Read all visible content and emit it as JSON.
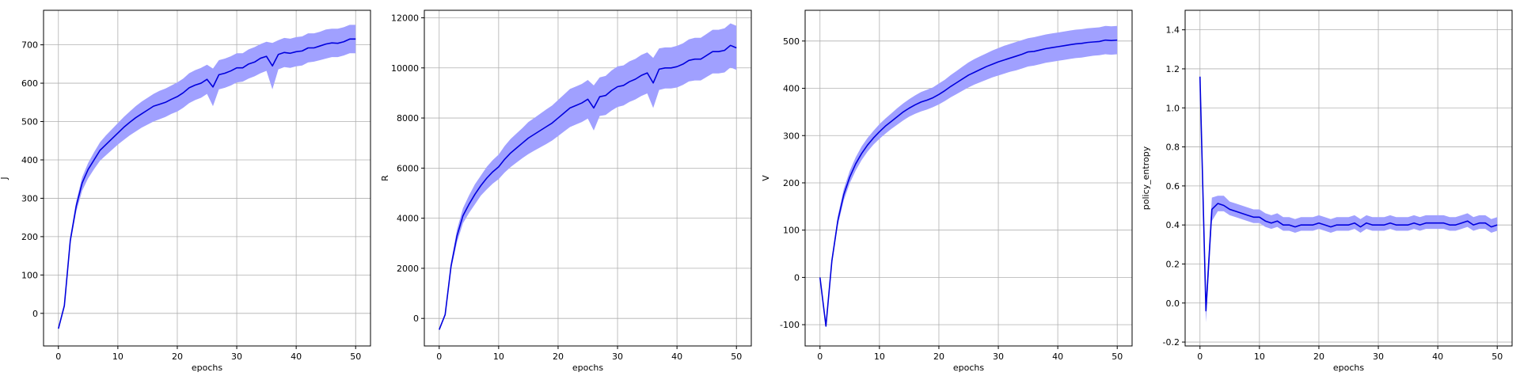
{
  "chart_data": [
    {
      "type": "line",
      "xlabel": "epochs",
      "ylabel": "J",
      "xlim": [
        -2.5,
        52.5
      ],
      "ylim": [
        -85,
        790
      ],
      "xticks": [
        0,
        10,
        20,
        30,
        40,
        50
      ],
      "yticks": [
        0,
        100,
        200,
        300,
        400,
        500,
        600,
        700
      ],
      "grid": true,
      "line_color": "#0000dd",
      "band_color": "#a0a0ff",
      "x": [
        0,
        1,
        2,
        3,
        4,
        5,
        6,
        7,
        8,
        9,
        10,
        11,
        12,
        13,
        14,
        15,
        16,
        17,
        18,
        19,
        20,
        21,
        22,
        23,
        24,
        25,
        26,
        27,
        28,
        29,
        30,
        31,
        32,
        33,
        34,
        35,
        36,
        37,
        38,
        39,
        40,
        41,
        42,
        43,
        44,
        45,
        46,
        47,
        48,
        49,
        50
      ],
      "mean": [
        -40,
        20,
        190,
        280,
        340,
        375,
        400,
        425,
        440,
        455,
        470,
        485,
        498,
        510,
        520,
        530,
        540,
        545,
        550,
        558,
        565,
        575,
        588,
        595,
        600,
        610,
        590,
        622,
        626,
        632,
        640,
        640,
        650,
        655,
        665,
        670,
        645,
        675,
        680,
        678,
        682,
        684,
        692,
        692,
        697,
        702,
        705,
        704,
        708,
        715,
        715
      ],
      "lower": [
        -40,
        15,
        180,
        265,
        320,
        352,
        376,
        398,
        412,
        426,
        440,
        452,
        464,
        474,
        484,
        492,
        500,
        506,
        512,
        520,
        526,
        536,
        548,
        556,
        562,
        572,
        540,
        584,
        588,
        594,
        602,
        604,
        612,
        618,
        626,
        632,
        584,
        636,
        642,
        640,
        644,
        646,
        654,
        656,
        660,
        664,
        668,
        668,
        672,
        678,
        678
      ],
      "upper": [
        -40,
        25,
        200,
        292,
        355,
        392,
        420,
        446,
        464,
        480,
        496,
        512,
        526,
        540,
        552,
        562,
        572,
        580,
        586,
        594,
        602,
        612,
        626,
        634,
        640,
        648,
        638,
        660,
        664,
        670,
        678,
        678,
        688,
        694,
        702,
        708,
        705,
        712,
        718,
        716,
        720,
        722,
        730,
        730,
        734,
        740,
        742,
        742,
        746,
        752,
        752
      ]
    },
    {
      "type": "line",
      "xlabel": "epochs",
      "ylabel": "R",
      "xlim": [
        -2.5,
        52.5
      ],
      "ylim": [
        -1100,
        12300
      ],
      "xticks": [
        0,
        10,
        20,
        30,
        40,
        50
      ],
      "yticks": [
        0,
        2000,
        4000,
        6000,
        8000,
        10000,
        12000
      ],
      "grid": true,
      "line_color": "#0000dd",
      "band_color": "#a0a0ff",
      "x": [
        0,
        1,
        2,
        3,
        4,
        5,
        6,
        7,
        8,
        9,
        10,
        11,
        12,
        13,
        14,
        15,
        16,
        17,
        18,
        19,
        20,
        21,
        22,
        23,
        24,
        25,
        26,
        27,
        28,
        29,
        30,
        31,
        32,
        33,
        34,
        35,
        36,
        37,
        38,
        39,
        40,
        41,
        42,
        43,
        44,
        45,
        46,
        47,
        48,
        49,
        50
      ],
      "mean": [
        -450,
        150,
        2100,
        3300,
        4100,
        4550,
        4950,
        5300,
        5600,
        5850,
        6050,
        6350,
        6600,
        6800,
        7000,
        7200,
        7350,
        7500,
        7650,
        7800,
        8000,
        8200,
        8400,
        8500,
        8600,
        8750,
        8400,
        8850,
        8900,
        9100,
        9250,
        9300,
        9450,
        9550,
        9700,
        9800,
        9400,
        9950,
        10000,
        10000,
        10050,
        10150,
        10300,
        10350,
        10350,
        10500,
        10650,
        10650,
        10700,
        10900,
        10800
      ],
      "lower": [
        -450,
        120,
        1950,
        3050,
        3800,
        4200,
        4550,
        4900,
        5150,
        5380,
        5560,
        5820,
        6040,
        6220,
        6400,
        6560,
        6700,
        6830,
        6960,
        7100,
        7280,
        7460,
        7640,
        7740,
        7840,
        7980,
        7500,
        8080,
        8120,
        8300,
        8440,
        8500,
        8640,
        8740,
        8880,
        8980,
        8400,
        9120,
        9180,
        9180,
        9220,
        9320,
        9460,
        9500,
        9500,
        9640,
        9780,
        9780,
        9820,
        10020,
        9920
      ],
      "upper": [
        -450,
        180,
        2250,
        3550,
        4400,
        4900,
        5350,
        5700,
        6050,
        6320,
        6540,
        6880,
        7160,
        7380,
        7600,
        7840,
        8000,
        8170,
        8340,
        8500,
        8720,
        8940,
        9160,
        9260,
        9360,
        9520,
        9300,
        9620,
        9680,
        9900,
        10060,
        10100,
        10260,
        10360,
        10520,
        10620,
        10400,
        10780,
        10820,
        10820,
        10880,
        10980,
        11140,
        11200,
        11200,
        11360,
        11520,
        11520,
        11580,
        11780,
        11680
      ]
    },
    {
      "type": "line",
      "xlabel": "epochs",
      "ylabel": "V",
      "xlim": [
        -2.5,
        52.5
      ],
      "ylim": [
        -145,
        565
      ],
      "xticks": [
        0,
        10,
        20,
        30,
        40,
        50
      ],
      "yticks": [
        -100,
        0,
        100,
        200,
        300,
        400,
        500
      ],
      "grid": true,
      "line_color": "#0000dd",
      "band_color": "#a0a0ff",
      "x": [
        0,
        1,
        2,
        3,
        4,
        5,
        6,
        7,
        8,
        9,
        10,
        11,
        12,
        13,
        14,
        15,
        16,
        17,
        18,
        19,
        20,
        21,
        22,
        23,
        24,
        25,
        26,
        27,
        28,
        29,
        30,
        31,
        32,
        33,
        34,
        35,
        36,
        37,
        38,
        39,
        40,
        41,
        42,
        43,
        44,
        45,
        46,
        47,
        48,
        49,
        50
      ],
      "mean": [
        0,
        -103,
        35,
        120,
        175,
        212,
        240,
        262,
        280,
        295,
        308,
        320,
        330,
        340,
        350,
        358,
        365,
        371,
        375,
        380,
        387,
        395,
        404,
        412,
        420,
        428,
        434,
        440,
        446,
        451,
        456,
        460,
        464,
        468,
        472,
        477,
        478,
        481,
        484,
        486,
        488,
        490,
        492,
        494,
        495,
        497,
        498,
        499,
        502,
        501,
        502
      ],
      "lower": [
        0,
        -106,
        28,
        110,
        163,
        199,
        226,
        248,
        266,
        281,
        293,
        304,
        314,
        323,
        332,
        340,
        346,
        351,
        355,
        360,
        366,
        373,
        381,
        388,
        395,
        402,
        408,
        413,
        418,
        423,
        427,
        431,
        435,
        438,
        442,
        446,
        448,
        451,
        454,
        456,
        458,
        460,
        462,
        464,
        465,
        467,
        469,
        470,
        472,
        471,
        472
      ],
      "upper": [
        0,
        -100,
        42,
        130,
        187,
        225,
        254,
        277,
        295,
        310,
        324,
        336,
        347,
        358,
        368,
        377,
        385,
        392,
        397,
        402,
        410,
        418,
        428,
        437,
        446,
        455,
        462,
        468,
        474,
        480,
        485,
        490,
        494,
        498,
        502,
        506,
        508,
        511,
        514,
        516,
        518,
        520,
        522,
        524,
        525,
        527,
        528,
        529,
        532,
        531,
        532
      ]
    },
    {
      "type": "line",
      "xlabel": "epochs",
      "ylabel": "policy_entropy",
      "xlim": [
        -2.5,
        52.5
      ],
      "ylim": [
        -0.22,
        1.5
      ],
      "xticks": [
        0,
        10,
        20,
        30,
        40,
        50
      ],
      "yticks": [
        -0.2,
        0.0,
        0.2,
        0.4,
        0.6,
        0.8,
        1.0,
        1.2,
        1.4
      ],
      "grid": true,
      "line_color": "#0000dd",
      "band_color": "#a0a0ff",
      "x": [
        0,
        1,
        2,
        3,
        4,
        5,
        6,
        7,
        8,
        9,
        10,
        11,
        12,
        13,
        14,
        15,
        16,
        17,
        18,
        19,
        20,
        21,
        22,
        23,
        24,
        25,
        26,
        27,
        28,
        29,
        30,
        31,
        32,
        33,
        34,
        35,
        36,
        37,
        38,
        39,
        40,
        41,
        42,
        43,
        44,
        45,
        46,
        47,
        48,
        49,
        50
      ],
      "mean": [
        1.16,
        -0.04,
        0.48,
        0.51,
        0.5,
        0.48,
        0.47,
        0.46,
        0.45,
        0.44,
        0.44,
        0.42,
        0.41,
        0.42,
        0.4,
        0.4,
        0.39,
        0.4,
        0.4,
        0.4,
        0.41,
        0.4,
        0.39,
        0.4,
        0.4,
        0.4,
        0.41,
        0.39,
        0.41,
        0.4,
        0.4,
        0.4,
        0.41,
        0.4,
        0.4,
        0.4,
        0.41,
        0.4,
        0.41,
        0.41,
        0.41,
        0.41,
        0.4,
        0.4,
        0.41,
        0.42,
        0.4,
        0.41,
        0.41,
        0.39,
        0.4
      ],
      "lower": [
        1.16,
        -0.1,
        0.42,
        0.47,
        0.47,
        0.45,
        0.44,
        0.43,
        0.42,
        0.41,
        0.41,
        0.39,
        0.38,
        0.39,
        0.37,
        0.37,
        0.36,
        0.37,
        0.37,
        0.37,
        0.38,
        0.37,
        0.36,
        0.37,
        0.37,
        0.37,
        0.38,
        0.36,
        0.38,
        0.37,
        0.37,
        0.37,
        0.38,
        0.37,
        0.37,
        0.37,
        0.38,
        0.37,
        0.38,
        0.38,
        0.38,
        0.38,
        0.37,
        0.37,
        0.38,
        0.39,
        0.37,
        0.38,
        0.38,
        0.36,
        0.37
      ],
      "upper": [
        1.16,
        0.02,
        0.54,
        0.55,
        0.55,
        0.52,
        0.51,
        0.5,
        0.49,
        0.48,
        0.48,
        0.46,
        0.45,
        0.46,
        0.44,
        0.44,
        0.43,
        0.44,
        0.44,
        0.44,
        0.45,
        0.44,
        0.43,
        0.44,
        0.44,
        0.44,
        0.45,
        0.43,
        0.45,
        0.44,
        0.44,
        0.44,
        0.45,
        0.44,
        0.44,
        0.44,
        0.45,
        0.44,
        0.45,
        0.45,
        0.45,
        0.45,
        0.44,
        0.44,
        0.45,
        0.46,
        0.44,
        0.45,
        0.45,
        0.43,
        0.44
      ]
    }
  ]
}
